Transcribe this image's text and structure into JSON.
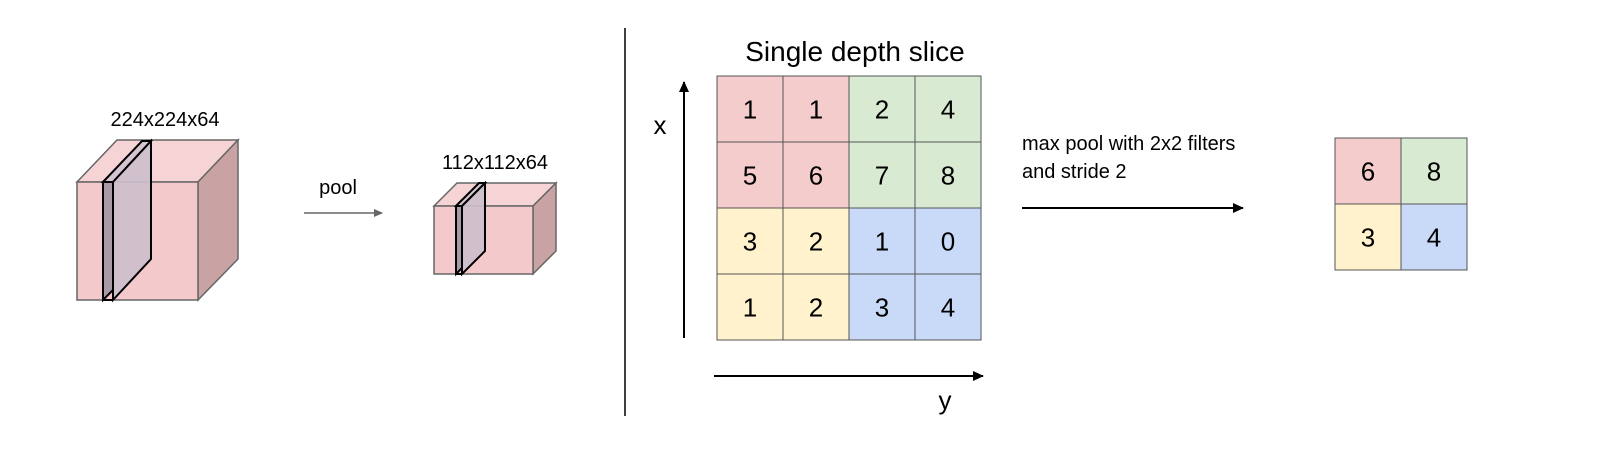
{
  "left_panel": {
    "input_volume": {
      "dims_label": "224x224x64"
    },
    "operation": {
      "label": "pool"
    },
    "output_volume": {
      "dims_label": "112x112x64"
    }
  },
  "right_panel": {
    "title": "Single depth slice",
    "x_axis_label": "x",
    "y_axis_label": "y",
    "input_grid": {
      "rows": [
        [
          "1",
          "1",
          "2",
          "4"
        ],
        [
          "5",
          "6",
          "7",
          "8"
        ],
        [
          "3",
          "2",
          "1",
          "0"
        ],
        [
          "1",
          "2",
          "3",
          "4"
        ]
      ]
    },
    "operation_caption": {
      "line1": "max pool with 2x2 filters",
      "line2": "and stride 2"
    },
    "output_grid": {
      "rows": [
        [
          "6",
          "8"
        ],
        [
          "3",
          "4"
        ]
      ]
    }
  },
  "colors": {
    "red_region": "#f4cccc",
    "green_region": "#d9ead3",
    "yellow_region": "#fff2cc",
    "blue_region": "#c9daf8",
    "cube_front": "#f3c9cb",
    "cube_top": "#f6d4d5",
    "cube_side": "#c9a3a4",
    "slice_fill": "#cdbfcc"
  }
}
